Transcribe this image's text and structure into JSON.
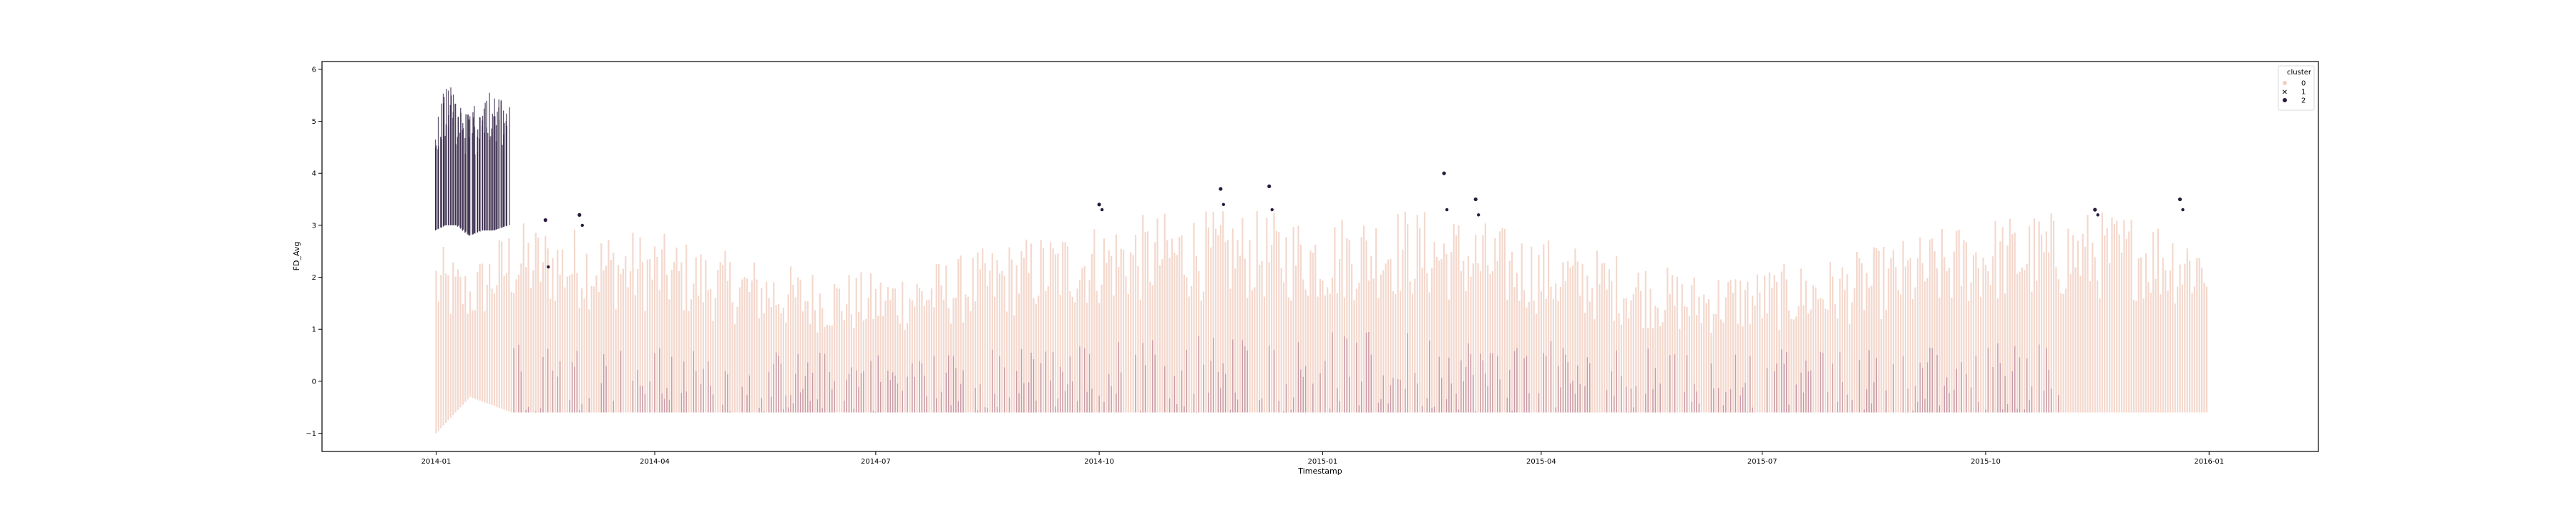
{
  "chart_data": {
    "type": "scatter",
    "title": "",
    "xlabel": "Timestamp",
    "ylabel": "FD_Avg",
    "x_range": [
      "2013-11-15",
      "2016-02-15"
    ],
    "ylim": [
      -1.35,
      6.15
    ],
    "x_ticks": [
      "2014-01",
      "2014-04",
      "2014-07",
      "2014-10",
      "2015-01",
      "2015-04",
      "2015-07",
      "2015-10",
      "2016-01"
    ],
    "y_ticks": [
      -1,
      0,
      1,
      2,
      3,
      4,
      5,
      6
    ],
    "y_tick_labels": [
      "−1",
      "0",
      "1",
      "2",
      "3",
      "4",
      "5",
      "6"
    ],
    "grid": false,
    "legend": {
      "title": "cluster",
      "placement": "top-right",
      "entries": [
        {
          "label": "0",
          "color": "#f2d1c4",
          "marker": "circle"
        },
        {
          "label": "1",
          "color": "#a4678a",
          "marker": "x"
        },
        {
          "label": "2",
          "color": "#2a1b3d",
          "marker": "circle"
        }
      ]
    },
    "series": [
      {
        "name": "0",
        "color": "#f2d1c4",
        "description_range": "daily extent of cluster 0 readings",
        "points": [
          {
            "x": "2014-01-01",
            "low": -1.0,
            "high": 2.7
          },
          {
            "x": "2014-01-15",
            "low": -0.3,
            "high": 2.2
          },
          {
            "x": "2014-02-01",
            "low": -0.6,
            "high": 3.1
          },
          {
            "x": "2014-03-01",
            "low": -0.6,
            "high": 3.0
          },
          {
            "x": "2014-04-01",
            "low": -0.6,
            "high": 2.9
          },
          {
            "x": "2014-05-01",
            "low": -0.6,
            "high": 2.5
          },
          {
            "x": "2014-06-01",
            "low": -0.6,
            "high": 2.2
          },
          {
            "x": "2014-07-01",
            "low": -0.6,
            "high": 2.1
          },
          {
            "x": "2014-08-01",
            "low": -0.6,
            "high": 2.4
          },
          {
            "x": "2014-09-01",
            "low": -0.6,
            "high": 2.8
          },
          {
            "x": "2014-10-01",
            "low": -0.6,
            "high": 3.1
          },
          {
            "x": "2014-11-01",
            "low": -0.6,
            "high": 3.3
          },
          {
            "x": "2014-12-01",
            "low": -0.6,
            "high": 3.3
          },
          {
            "x": "2015-01-01",
            "low": -0.6,
            "high": 3.2
          },
          {
            "x": "2015-02-01",
            "low": -0.6,
            "high": 3.4
          },
          {
            "x": "2015-03-01",
            "low": -0.6,
            "high": 3.2
          },
          {
            "x": "2015-04-01",
            "low": -0.6,
            "high": 2.8
          },
          {
            "x": "2015-05-01",
            "low": -0.6,
            "high": 2.5
          },
          {
            "x": "2015-06-01",
            "low": -0.6,
            "high": 2.1
          },
          {
            "x": "2015-07-01",
            "low": -0.6,
            "high": 2.2
          },
          {
            "x": "2015-08-01",
            "low": -0.6,
            "high": 2.4
          },
          {
            "x": "2015-09-01",
            "low": -0.6,
            "high": 2.8
          },
          {
            "x": "2015-10-01",
            "low": -0.6,
            "high": 3.2
          },
          {
            "x": "2015-11-01",
            "low": -0.6,
            "high": 3.3
          },
          {
            "x": "2015-12-01",
            "low": -0.6,
            "high": 3.3
          },
          {
            "x": "2015-12-31",
            "low": -0.6,
            "high": 3.0
          }
        ]
      },
      {
        "name": "1",
        "color": "#a4678a",
        "points": [
          {
            "x": "2014-02-01",
            "low": -0.6,
            "high": 0.8
          },
          {
            "x": "2014-05-01",
            "low": -0.6,
            "high": 0.6
          },
          {
            "x": "2014-08-01",
            "low": -0.6,
            "high": 0.6
          },
          {
            "x": "2014-11-01",
            "low": -0.6,
            "high": 0.9
          },
          {
            "x": "2015-02-01",
            "low": -0.6,
            "high": 1.0
          },
          {
            "x": "2015-05-01",
            "low": -0.6,
            "high": 0.7
          },
          {
            "x": "2015-08-01",
            "low": -0.6,
            "high": 0.6
          },
          {
            "x": "2015-11-01",
            "low": -0.6,
            "high": 0.9
          }
        ]
      },
      {
        "name": "2",
        "color": "#2a1b3d",
        "points": [
          {
            "x": "2014-01-01",
            "low": 2.9,
            "high": 5.0
          },
          {
            "x": "2014-01-05",
            "low": 3.0,
            "high": 5.8
          },
          {
            "x": "2014-01-10",
            "low": 3.0,
            "high": 5.6
          },
          {
            "x": "2014-01-15",
            "low": 2.8,
            "high": 5.2
          },
          {
            "x": "2014-01-20",
            "low": 2.9,
            "high": 5.7
          },
          {
            "x": "2014-01-25",
            "low": 2.9,
            "high": 5.5
          },
          {
            "x": "2014-01-31",
            "low": 3.0,
            "high": 5.6
          },
          {
            "x": "2014-02-15",
            "low": 2.2,
            "high": 3.1
          },
          {
            "x": "2014-03-01",
            "low": 3.0,
            "high": 3.2
          },
          {
            "x": "2014-10-01",
            "low": 3.3,
            "high": 3.4
          },
          {
            "x": "2014-11-20",
            "low": 3.4,
            "high": 3.7
          },
          {
            "x": "2014-12-10",
            "low": 3.3,
            "high": 3.75
          },
          {
            "x": "2015-02-20",
            "low": 3.3,
            "high": 4.0
          },
          {
            "x": "2015-03-05",
            "low": 3.2,
            "high": 3.5
          },
          {
            "x": "2015-11-15",
            "low": 3.2,
            "high": 3.3
          },
          {
            "x": "2015-12-20",
            "low": 3.3,
            "high": 3.5
          }
        ]
      }
    ]
  }
}
